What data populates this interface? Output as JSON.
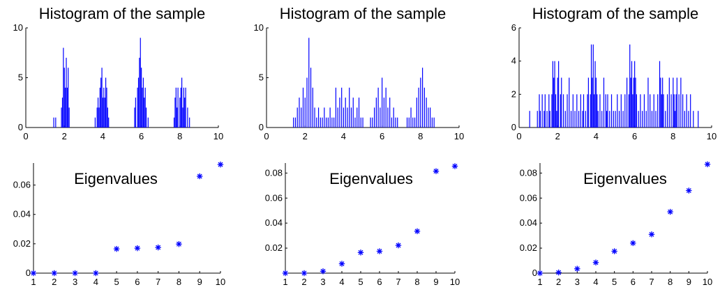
{
  "chart_data": [
    {
      "type": "bar",
      "title": "Histogram of the sample",
      "xlim": [
        0,
        10
      ],
      "ylim": [
        0,
        10
      ],
      "xticks": [
        0,
        2,
        4,
        6,
        8,
        10
      ],
      "yticks": [
        0,
        5,
        10
      ],
      "bin_width": 0.04,
      "bar_color": "#0000ff",
      "x": [
        1.45,
        1.55,
        1.85,
        1.9,
        1.95,
        2.0,
        2.05,
        2.1,
        2.15,
        2.2,
        2.25,
        3.6,
        3.7,
        3.75,
        3.8,
        3.85,
        3.9,
        3.95,
        4.0,
        4.05,
        4.1,
        4.15,
        4.2,
        4.25,
        4.3,
        5.65,
        5.7,
        5.8,
        5.85,
        5.9,
        5.95,
        6.0,
        6.05,
        6.1,
        6.15,
        6.2,
        6.25,
        6.35,
        7.7,
        7.75,
        7.8,
        7.85,
        7.9,
        8.0,
        8.05,
        8.1,
        8.15,
        8.2,
        8.25,
        8.3,
        8.4,
        8.5
      ],
      "values": [
        1,
        1,
        2,
        3,
        8,
        6,
        4,
        7,
        4,
        6,
        2,
        1,
        2,
        3,
        2,
        4,
        5,
        6,
        3,
        4,
        3,
        5,
        4,
        2,
        1,
        2,
        3,
        4,
        5,
        7,
        9,
        6,
        4,
        5,
        3,
        4,
        2,
        1,
        1,
        3,
        4,
        2,
        4,
        3,
        4,
        5,
        2,
        4,
        3,
        4,
        2,
        1
      ]
    },
    {
      "type": "bar",
      "title": "Histogram of the sample",
      "xlim": [
        0,
        10
      ],
      "ylim": [
        0,
        10
      ],
      "xticks": [
        0,
        2,
        4,
        6,
        8,
        10
      ],
      "yticks": [
        0,
        5,
        10
      ],
      "bin_width": 0.04,
      "bar_color": "#0000ff",
      "x": [
        1.4,
        1.5,
        1.6,
        1.7,
        1.8,
        1.9,
        2.0,
        2.1,
        2.2,
        2.3,
        2.4,
        2.5,
        2.6,
        2.7,
        2.8,
        2.9,
        3.0,
        3.1,
        3.2,
        3.3,
        3.4,
        3.5,
        3.6,
        3.7,
        3.8,
        3.9,
        4.0,
        4.1,
        4.2,
        4.3,
        4.4,
        4.5,
        4.6,
        4.7,
        4.8,
        4.9,
        5.0,
        5.4,
        5.5,
        5.6,
        5.7,
        5.8,
        5.9,
        6.0,
        6.1,
        6.2,
        6.3,
        6.4,
        6.5,
        6.6,
        6.7,
        6.8,
        7.3,
        7.4,
        7.5,
        7.6,
        7.7,
        7.8,
        7.9,
        8.0,
        8.1,
        8.2,
        8.3,
        8.4,
        8.5,
        8.6,
        8.7
      ],
      "values": [
        1,
        1,
        2,
        3,
        2,
        4,
        3,
        5,
        9,
        6,
        4,
        2,
        1,
        2,
        1,
        1,
        2,
        1,
        1,
        2,
        1,
        1,
        4,
        2,
        3,
        4,
        2,
        3,
        2,
        4,
        2,
        3,
        1,
        2,
        3,
        1,
        1,
        1,
        1,
        2,
        3,
        4,
        2,
        5,
        3,
        4,
        2,
        3,
        1,
        2,
        1,
        1,
        1,
        1,
        2,
        1,
        1,
        3,
        4,
        5,
        6,
        4,
        3,
        2,
        2,
        1,
        1
      ]
    },
    {
      "type": "bar",
      "title": "Histogram of the sample",
      "xlim": [
        0,
        10
      ],
      "ylim": [
        0,
        6
      ],
      "xticks": [
        0,
        2,
        4,
        6,
        8,
        10
      ],
      "yticks": [
        0,
        2,
        4,
        6
      ],
      "bin_width": 0.04,
      "bar_color": "#0000ff",
      "x": [
        0.55,
        0.95,
        1.05,
        1.1,
        1.2,
        1.3,
        1.35,
        1.45,
        1.55,
        1.6,
        1.7,
        1.75,
        1.8,
        1.85,
        1.9,
        1.95,
        2.0,
        2.05,
        2.15,
        2.2,
        2.3,
        2.4,
        2.5,
        2.6,
        2.7,
        2.8,
        2.9,
        3.0,
        3.1,
        3.2,
        3.3,
        3.35,
        3.45,
        3.55,
        3.6,
        3.7,
        3.75,
        3.8,
        3.85,
        3.9,
        3.95,
        4.0,
        4.05,
        4.1,
        4.2,
        4.3,
        4.4,
        4.5,
        4.55,
        4.6,
        4.7,
        4.8,
        4.9,
        5.0,
        5.1,
        5.2,
        5.3,
        5.4,
        5.5,
        5.6,
        5.7,
        5.75,
        5.8,
        5.85,
        5.9,
        5.95,
        6.0,
        6.05,
        6.1,
        6.2,
        6.3,
        6.4,
        6.5,
        6.6,
        6.7,
        6.8,
        6.9,
        7.0,
        7.1,
        7.2,
        7.3,
        7.35,
        7.4,
        7.45,
        7.5,
        7.6,
        7.7,
        7.8,
        7.9,
        8.0,
        8.05,
        8.1,
        8.15,
        8.2,
        8.3,
        8.4,
        8.5,
        8.6,
        8.7,
        8.8,
        8.9,
        9.05,
        9.3
      ],
      "values": [
        1,
        1,
        2,
        1,
        2,
        1,
        2,
        1,
        2,
        1,
        2,
        4,
        3,
        4,
        2,
        1,
        3,
        4,
        2,
        3,
        2,
        1,
        2,
        3,
        1,
        2,
        1,
        2,
        1,
        2,
        1,
        2,
        1,
        2,
        3,
        2,
        5,
        3,
        5,
        2,
        4,
        3,
        2,
        1,
        2,
        1,
        3,
        2,
        1,
        2,
        1,
        2,
        1,
        1,
        2,
        1,
        2,
        1,
        2,
        3,
        2,
        5,
        3,
        4,
        2,
        3,
        4,
        3,
        2,
        1,
        2,
        1,
        2,
        1,
        3,
        2,
        1,
        2,
        1,
        2,
        4,
        3,
        2,
        3,
        2,
        1,
        2,
        3,
        2,
        3,
        2,
        1,
        2,
        3,
        2,
        3,
        2,
        1,
        2,
        1,
        2,
        1,
        1
      ]
    },
    {
      "type": "scatter",
      "title": "Eigenvalues",
      "xlim": [
        1,
        10
      ],
      "ylim": [
        0,
        0.075
      ],
      "xticks": [
        1,
        2,
        3,
        4,
        5,
        6,
        7,
        8,
        9,
        10
      ],
      "yticks": [
        0,
        0.02,
        0.04,
        0.06
      ],
      "yticklabels": [
        "0",
        "0.02",
        "0.04",
        "0.06"
      ],
      "marker": "*",
      "marker_color": "#0000ff",
      "x": [
        1,
        2,
        3,
        4,
        5,
        6,
        7,
        8,
        9,
        10
      ],
      "y": [
        0,
        0,
        0,
        0,
        0.0165,
        0.017,
        0.0175,
        0.0198,
        0.066,
        0.074
      ]
    },
    {
      "type": "scatter",
      "title": "Eigenvalues",
      "xlim": [
        1,
        10
      ],
      "ylim": [
        0,
        0.088
      ],
      "xticks": [
        1,
        2,
        3,
        4,
        5,
        6,
        7,
        8,
        9,
        10
      ],
      "yticks": [
        0.02,
        0.04,
        0.06,
        0.08
      ],
      "yticklabels": [
        "0.02",
        "0.04",
        "0.06",
        "0.08"
      ],
      "marker": "*",
      "marker_color": "#0000ff",
      "x": [
        1,
        2,
        3,
        4,
        5,
        6,
        7,
        8,
        9,
        10
      ],
      "y": [
        0,
        0,
        0.0015,
        0.0075,
        0.0165,
        0.0175,
        0.0222,
        0.0335,
        0.0815,
        0.0855
      ]
    },
    {
      "type": "scatter",
      "title": "Eigenvalues",
      "xlim": [
        1,
        10
      ],
      "ylim": [
        0,
        0.088
      ],
      "xticks": [
        1,
        2,
        3,
        4,
        5,
        6,
        7,
        8,
        9,
        10
      ],
      "yticks": [
        0,
        0.02,
        0.04,
        0.06,
        0.08
      ],
      "yticklabels": [
        "0",
        "0.02",
        "0.04",
        "0.06",
        "0.08"
      ],
      "marker": "*",
      "marker_color": "#0000ff",
      "x": [
        1,
        2,
        3,
        4,
        5,
        6,
        7,
        8,
        9,
        10
      ],
      "y": [
        0,
        0.0005,
        0.0035,
        0.0085,
        0.0175,
        0.024,
        0.031,
        0.049,
        0.066,
        0.087
      ]
    }
  ]
}
